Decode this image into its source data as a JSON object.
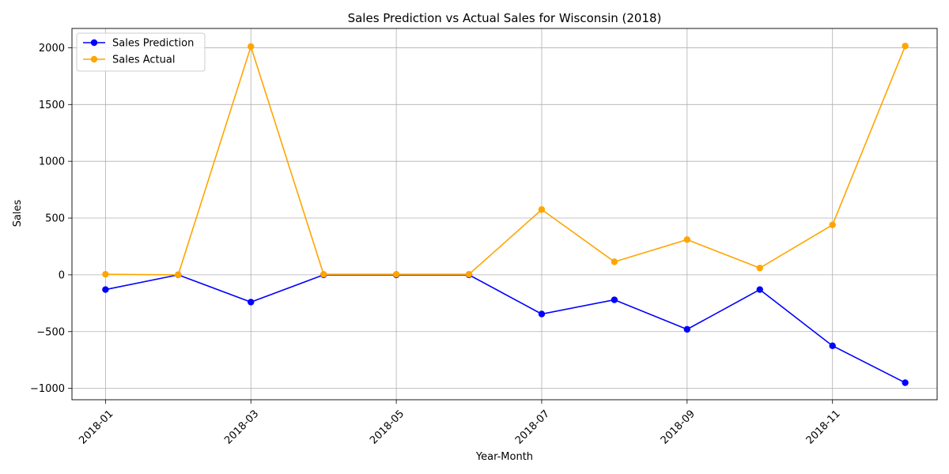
{
  "chart_data": {
    "type": "line",
    "title": "Sales Prediction vs Actual Sales for Wisconsin (2018)",
    "xlabel": "Year-Month",
    "ylabel": "Sales",
    "x": [
      "2018-01",
      "2018-02",
      "2018-03",
      "2018-04",
      "2018-05",
      "2018-06",
      "2018-07",
      "2018-08",
      "2018-09",
      "2018-10",
      "2018-11",
      "2018-12"
    ],
    "x_tick_labels": [
      "2018-01",
      "2018-03",
      "2018-05",
      "2018-07",
      "2018-09",
      "2018-11"
    ],
    "y_ticks": [
      -1000,
      -500,
      0,
      500,
      1000,
      1500,
      2000
    ],
    "y_tick_labels": [
      "−1000",
      "−500",
      "0",
      "500",
      "1000",
      "1500",
      "2000"
    ],
    "ylim": [
      -1100,
      2170
    ],
    "grid": true,
    "legend_position": "top-left",
    "series": [
      {
        "name": "Sales Prediction",
        "color": "#0000ff",
        "values": [
          -130,
          0,
          -240,
          0,
          0,
          0,
          -345,
          -220,
          -480,
          -130,
          -625,
          -950
        ]
      },
      {
        "name": "Sales Actual",
        "color": "#ffa500",
        "values": [
          5,
          0,
          2010,
          5,
          5,
          5,
          575,
          115,
          310,
          60,
          440,
          2015
        ]
      }
    ]
  }
}
